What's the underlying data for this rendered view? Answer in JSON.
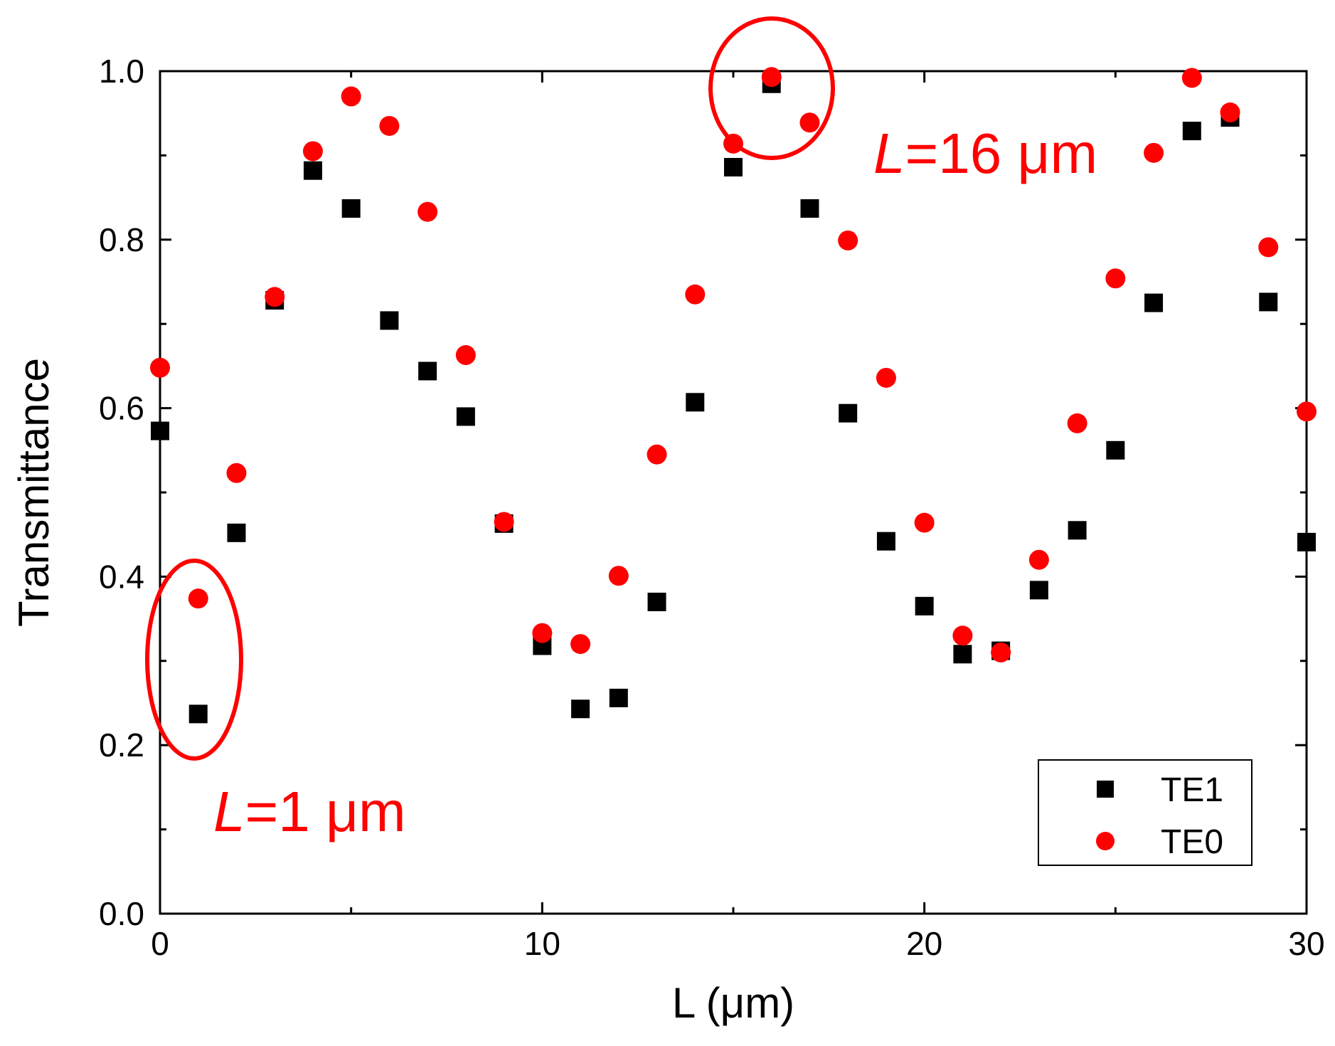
{
  "chart_data": {
    "type": "scatter",
    "title": "",
    "xlabel": "L (μm)",
    "ylabel": "Transmittance",
    "xlim": [
      0,
      30
    ],
    "ylim": [
      0,
      1.0
    ],
    "xticks": [
      0,
      10,
      20,
      30
    ],
    "xtick_labels": [
      "0",
      "10",
      "20",
      "30"
    ],
    "yticks": [
      0.0,
      0.2,
      0.4,
      0.6,
      0.8,
      1.0
    ],
    "ytick_labels": [
      "0.0",
      "0.2",
      "0.4",
      "0.6",
      "0.8",
      "1.0"
    ],
    "grid": false,
    "legend_position": "bottom-right",
    "series": [
      {
        "name": "TE1",
        "marker": "square",
        "color": "#000000",
        "x": [
          0,
          1,
          2,
          3,
          4,
          5,
          6,
          7,
          8,
          9,
          10,
          11,
          12,
          13,
          14,
          15,
          16,
          17,
          18,
          19,
          20,
          21,
          22,
          23,
          24,
          25,
          26,
          27,
          28,
          29,
          30
        ],
        "y": [
          0.573,
          0.237,
          0.452,
          0.728,
          0.882,
          0.837,
          0.704,
          0.644,
          0.59,
          0.463,
          0.318,
          0.243,
          0.256,
          0.37,
          0.607,
          0.886,
          0.985,
          0.837,
          0.594,
          0.442,
          0.365,
          0.308,
          0.312,
          0.384,
          0.455,
          0.55,
          0.725,
          0.929,
          0.945,
          0.726,
          0.441
        ]
      },
      {
        "name": "TE0",
        "marker": "circle",
        "color": "#ff0000",
        "x": [
          0,
          1,
          2,
          3,
          4,
          5,
          6,
          7,
          8,
          9,
          10,
          11,
          12,
          13,
          14,
          15,
          16,
          17,
          18,
          19,
          20,
          21,
          22,
          23,
          24,
          25,
          26,
          27,
          28,
          29,
          30
        ],
        "y": [
          0.648,
          0.374,
          0.523,
          0.732,
          0.905,
          0.97,
          0.935,
          0.833,
          0.663,
          0.465,
          0.333,
          0.32,
          0.401,
          0.545,
          0.735,
          0.914,
          0.993,
          0.939,
          0.799,
          0.636,
          0.464,
          0.33,
          0.31,
          0.42,
          0.582,
          0.754,
          0.903,
          0.992,
          0.951,
          0.791,
          0.596
        ]
      }
    ],
    "annotations": [
      {
        "text": "=16 μm",
        "italic_prefix": "L",
        "color": "#ff0000",
        "highlights_x": 16
      },
      {
        "text": "=1 μm",
        "italic_prefix": "L",
        "color": "#ff0000",
        "highlights_x": 1
      }
    ]
  }
}
